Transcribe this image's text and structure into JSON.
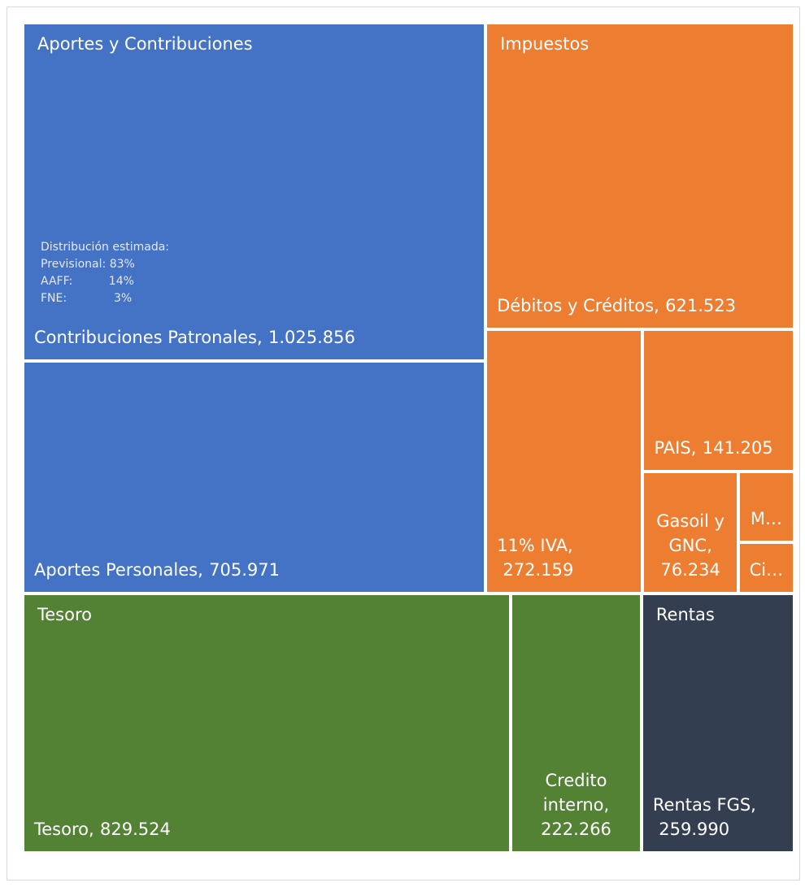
{
  "chart_data": {
    "type": "treemap",
    "groups": [
      {
        "name": "Aportes y Contribuciones",
        "color": "#4472c4",
        "leaves": [
          {
            "name": "Contribuciones Patronales,",
            "value": 1025856,
            "value_label": "1.025.856"
          },
          {
            "name": "Aportes Personales,",
            "value": 705971,
            "value_label": "705.971"
          }
        ]
      },
      {
        "name": "Impuestos",
        "color": "#ed7d31",
        "leaves": [
          {
            "name": "Débitos y Créditos,",
            "value": 621523,
            "value_label": "621.523"
          },
          {
            "name": "11% IVA,",
            "value": 272159,
            "value_label": "272.159"
          },
          {
            "name": "PAIS,",
            "value": 141205,
            "value_label": "141.205"
          },
          {
            "name": "Gasoil y GNC,",
            "value": 76234,
            "value_label": "76.234"
          },
          {
            "name": "M…",
            "value": 26000
          },
          {
            "name": "Ci…",
            "value": 19000
          }
        ]
      },
      {
        "name": "Tesoro",
        "color": "#548235",
        "leaves": [
          {
            "name": "Tesoro,",
            "value": 829524,
            "value_label": "829.524"
          },
          {
            "name": "Credito interno,",
            "value": 222266,
            "value_label": "222.266"
          }
        ]
      },
      {
        "name": "Rentas",
        "color": "#333f50",
        "leaves": [
          {
            "name": "Rentas FGS,",
            "value": 259990,
            "value_label": "259.990"
          }
        ]
      }
    ],
    "annotation": {
      "title": "Distribución estimada:",
      "lines": [
        "Previsional: 83%",
        "AAFF:          14%",
        "FNE:             3%"
      ]
    }
  }
}
